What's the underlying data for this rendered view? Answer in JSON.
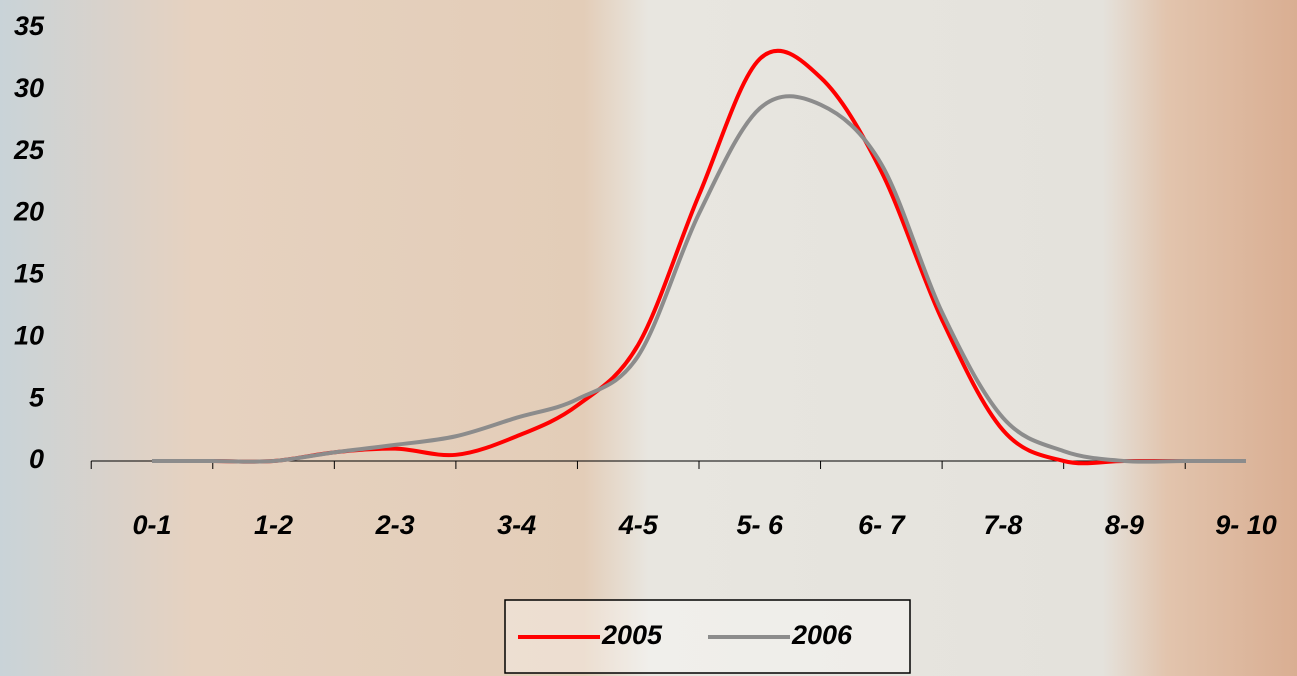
{
  "chart_data": {
    "type": "line",
    "categories": [
      "0-1",
      null,
      "1-2",
      null,
      "2-3",
      null,
      "3-4",
      null,
      "4-5",
      null,
      "5- 6",
      null,
      "6- 7",
      null,
      "7-8",
      null,
      "8-9",
      null,
      "9- 10"
    ],
    "series": [
      {
        "name": "2005",
        "color": "#ff0000",
        "values": [
          0,
          0,
          0,
          0.7,
          1,
          0.5,
          2,
          4.5,
          9.4,
          21.5,
          32.5,
          31,
          23.4,
          11.4,
          2.5,
          0,
          0,
          0,
          0
        ]
      },
      {
        "name": "2006",
        "color": "#8c8c8c",
        "values": [
          0,
          0,
          0,
          0.7,
          1.3,
          2,
          3.5,
          5,
          8.5,
          20,
          28.5,
          28.8,
          24,
          12,
          3.5,
          0.8,
          0,
          0,
          0
        ]
      }
    ],
    "ylim": [
      0,
      35
    ],
    "yticks": [
      0,
      5,
      10,
      15,
      20,
      25,
      30,
      35
    ],
    "legend": "bottom"
  }
}
